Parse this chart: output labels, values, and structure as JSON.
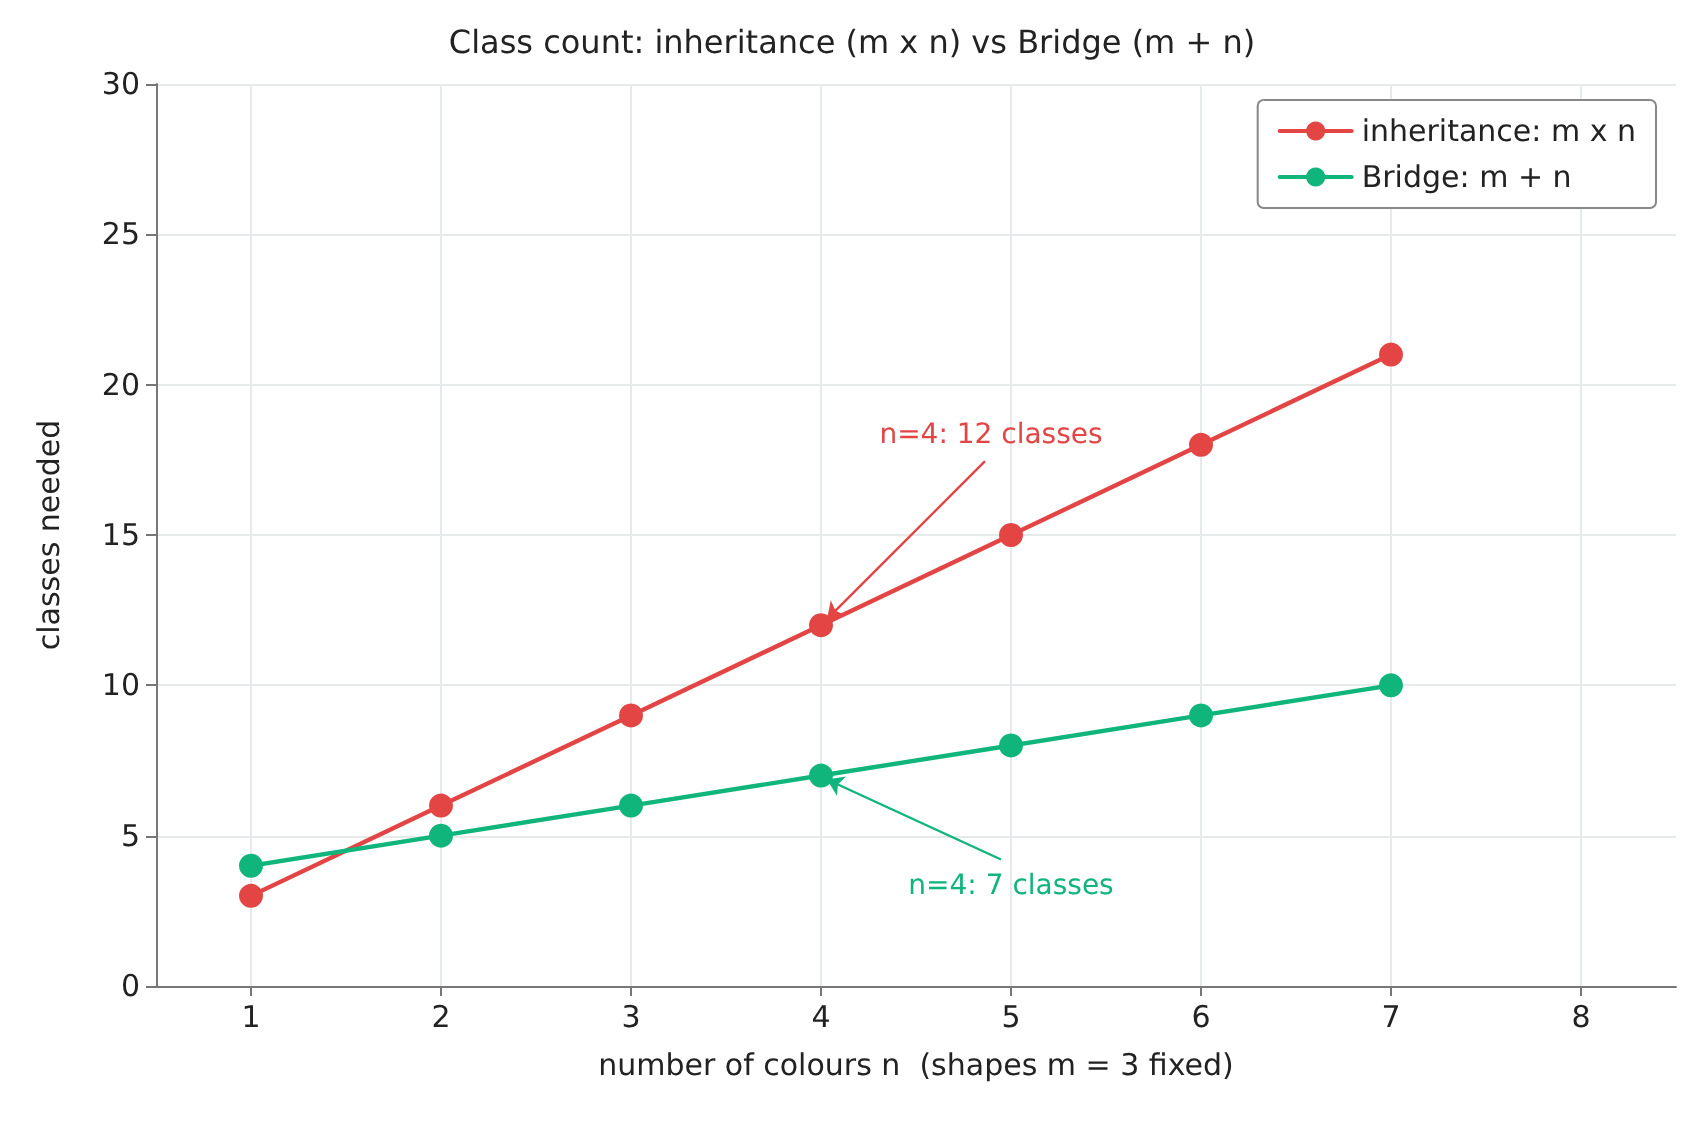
{
  "chart_data": {
    "type": "line",
    "title": "Class count: inheritance (m x n) vs Bridge (m + n)",
    "xlabel": "number of colours n  (shapes m = 3 fixed)",
    "ylabel": "classes needed",
    "x": [
      1,
      2,
      3,
      4,
      5,
      6,
      7
    ],
    "series": [
      {
        "name": "inheritance: m x n",
        "color": "#e34545",
        "values": [
          3,
          6,
          9,
          12,
          15,
          18,
          21
        ]
      },
      {
        "name": "Bridge: m + n",
        "color": "#10b57c",
        "values": [
          4,
          5,
          6,
          7,
          8,
          9,
          10
        ]
      }
    ],
    "xlim": [
      0.5,
      8.5
    ],
    "xticks": [
      1,
      2,
      3,
      4,
      5,
      6,
      7,
      8
    ],
    "ylim": [
      0,
      30
    ],
    "yticks": [
      0,
      5,
      10,
      15,
      20,
      25,
      30
    ],
    "annotations": [
      {
        "text": "n=4: 12 classes",
        "x": 4,
        "y": 12
      },
      {
        "text": "n=4: 7 classes",
        "x": 4,
        "y": 7
      }
    ],
    "grid": true,
    "legend": "top right",
    "marker": "circle",
    "line_style": "solid"
  }
}
